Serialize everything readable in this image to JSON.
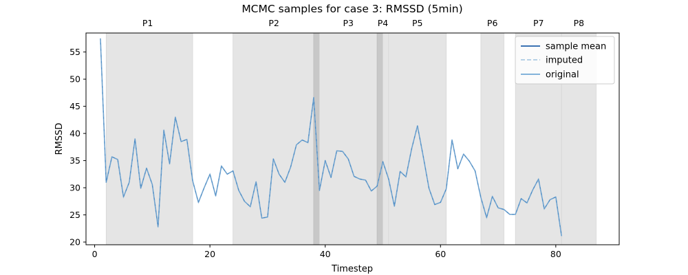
{
  "chart_data": {
    "type": "line",
    "title": "MCMC samples for case 3: RMSSD (5min)",
    "xlabel": "Timestep",
    "ylabel": "RMSSD",
    "xlim": [
      -1.5,
      91
    ],
    "ylim": [
      19.5,
      58.5
    ],
    "xticks": [
      0,
      20,
      40,
      60,
      80
    ],
    "yticks": [
      20,
      25,
      30,
      35,
      40,
      45,
      50,
      55
    ],
    "grid": false,
    "legend_position": "top-right",
    "legend": [
      {
        "label": "sample mean",
        "style": "solid",
        "color": "#1f5fa8"
      },
      {
        "label": "imputed",
        "style": "dashed",
        "color": "#9ec3e0"
      },
      {
        "label": "original",
        "style": "solid",
        "color": "#5b9bd0"
      }
    ],
    "phases": [
      {
        "label": "P1",
        "start": 2,
        "end": 17,
        "shade": "light"
      },
      {
        "label": "P2",
        "start": 24,
        "end": 38,
        "shade": "light"
      },
      {
        "label": "",
        "start": 38,
        "end": 39,
        "shade": "dark"
      },
      {
        "label": "P3",
        "start": 39,
        "end": 49,
        "shade": "light"
      },
      {
        "label": "P4",
        "start": 49,
        "end": 50,
        "shade": "dark"
      },
      {
        "label": "",
        "start": 50,
        "end": 51,
        "shade": "light"
      },
      {
        "label": "P5",
        "start": 51,
        "end": 61,
        "shade": "light"
      },
      {
        "label": "P6",
        "start": 67,
        "end": 71,
        "shade": "light"
      },
      {
        "label": "P7",
        "start": 73,
        "end": 81,
        "shade": "light"
      },
      {
        "label": "P8",
        "start": 81,
        "end": 87,
        "shade": "light"
      }
    ],
    "phase_label_positions": [
      {
        "label": "P1",
        "x": 9.2
      },
      {
        "label": "P2",
        "x": 31.1
      },
      {
        "label": "P3",
        "x": 44.0
      },
      {
        "label": "P4",
        "x": 50.0
      },
      {
        "label": "P5",
        "x": 56.0
      },
      {
        "label": "P6",
        "x": 69.0
      },
      {
        "label": "P7",
        "x": 77.0
      },
      {
        "label": "P8",
        "x": 84.0
      }
    ],
    "series": [
      {
        "name": "sample mean",
        "x": [
          1,
          2,
          3,
          4,
          5,
          6,
          7,
          8,
          9,
          10,
          11,
          12,
          13,
          14,
          15,
          16,
          17,
          18,
          19,
          20,
          21,
          22,
          23,
          24,
          25,
          26,
          27,
          28,
          29,
          30,
          31,
          32,
          33,
          34,
          35,
          36,
          37,
          38,
          39,
          40,
          41,
          42,
          43,
          44,
          45,
          46,
          47,
          48,
          49,
          50,
          51,
          52,
          53,
          54,
          55,
          56,
          57,
          58,
          59,
          60,
          61,
          62,
          63,
          64,
          65,
          66,
          67,
          68,
          69,
          70,
          71,
          72,
          73,
          74,
          75,
          76,
          77,
          78,
          79,
          80,
          81
        ],
        "y": [
          57.5,
          31.0,
          35.7,
          35.2,
          28.3,
          31.0,
          39.0,
          29.9,
          33.6,
          30.6,
          22.8,
          40.6,
          34.4,
          43.0,
          38.5,
          38.9,
          31.3,
          27.3,
          30.0,
          32.5,
          28.5,
          34.0,
          32.5,
          33.1,
          29.5,
          27.5,
          26.5,
          31.1,
          24.4,
          24.6,
          35.3,
          32.5,
          31.0,
          33.8,
          37.9,
          38.8,
          38.3,
          46.6,
          29.5,
          35.0,
          31.9,
          36.8,
          36.7,
          35.3,
          32.1,
          31.6,
          31.4,
          29.4,
          30.3,
          34.8,
          31.6,
          26.6,
          33.0,
          32.0,
          37.2,
          41.4,
          35.8,
          29.9,
          26.9,
          27.3,
          29.8,
          38.8,
          33.5,
          36.2,
          34.9,
          33.1,
          28.2,
          24.5,
          28.4,
          26.3,
          26.0,
          25.1,
          25.1,
          28.0,
          27.2,
          29.6,
          31.6,
          26.1,
          27.8,
          28.3,
          21.1
        ]
      }
    ]
  }
}
